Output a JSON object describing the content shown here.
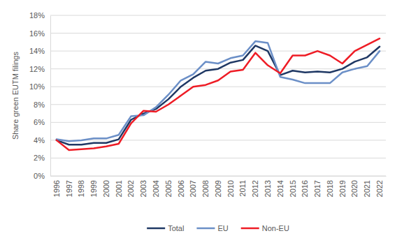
{
  "chart_data": {
    "type": "line",
    "y_label": "Share green EUTM filings",
    "categories": [
      "1996",
      "1997",
      "1998",
      "1999",
      "2000",
      "2001",
      "2002",
      "2003",
      "2004",
      "2005",
      "2006",
      "2007",
      "2008",
      "2009",
      "2010",
      "2011",
      "2012",
      "2013",
      "2014",
      "2015",
      "2016",
      "2017",
      "2018",
      "2019",
      "2020",
      "2021",
      "2022"
    ],
    "series": [
      {
        "name": "Total",
        "color": "#1f3864",
        "values": [
          4.0,
          3.5,
          3.5,
          3.7,
          3.7,
          4.1,
          6.3,
          7.0,
          7.5,
          8.6,
          10.0,
          11.0,
          11.8,
          12.0,
          12.7,
          13.0,
          14.6,
          14.0,
          11.3,
          11.8,
          11.6,
          11.7,
          11.6,
          12.0,
          12.8,
          13.3,
          14.5
        ]
      },
      {
        "name": "EU",
        "color": "#6b8fc7",
        "values": [
          4.1,
          3.9,
          4.0,
          4.2,
          4.2,
          4.6,
          6.7,
          6.8,
          7.7,
          9.1,
          10.7,
          11.4,
          12.8,
          12.6,
          13.2,
          13.5,
          15.1,
          14.9,
          11.1,
          10.8,
          10.4,
          10.4,
          10.4,
          11.6,
          12.0,
          12.3,
          14.0
        ]
      },
      {
        "name": "Non-EU",
        "color": "#ee1c25",
        "values": [
          4.0,
          2.9,
          3.0,
          3.1,
          3.3,
          3.6,
          5.9,
          7.3,
          7.2,
          8.0,
          9.0,
          10.0,
          10.2,
          10.7,
          11.7,
          11.9,
          13.8,
          12.4,
          11.5,
          13.5,
          13.5,
          14.0,
          13.5,
          12.6,
          14.0,
          14.7,
          15.4
        ]
      }
    ],
    "ylim": [
      0,
      18
    ],
    "yticks": [
      {
        "value": 0,
        "label": "0%"
      },
      {
        "value": 2,
        "label": "2%"
      },
      {
        "value": 4,
        "label": "4%"
      },
      {
        "value": 6,
        "label": "6%"
      },
      {
        "value": 8,
        "label": "8%"
      },
      {
        "value": 10,
        "label": "10%"
      },
      {
        "value": 12,
        "label": "12%"
      },
      {
        "value": 14,
        "label": "14%"
      },
      {
        "value": 16,
        "label": "16%"
      },
      {
        "value": 18,
        "label": "18%"
      }
    ],
    "grid": true,
    "legend": "bottom"
  }
}
